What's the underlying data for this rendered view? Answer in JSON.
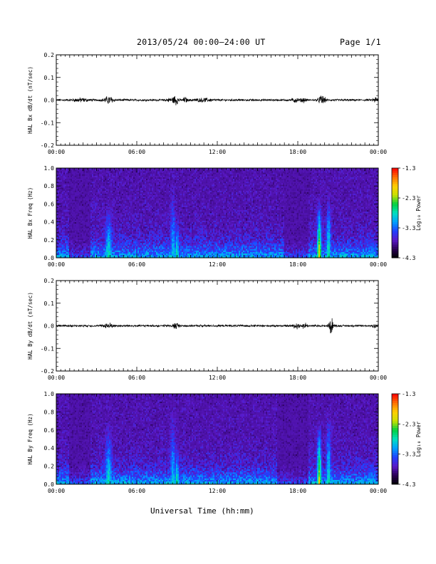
{
  "header": {
    "title": "2013/05/24  00:00–24:00 UT",
    "page": "Page 1/1"
  },
  "footer": {
    "xlabel": "Universal Time (hh:mm)"
  },
  "colorbar": {
    "title": "Log₁₀ Power",
    "ticks": [
      "-1.3",
      "-2.3",
      "-3.3",
      "-4.3"
    ],
    "range": [
      -4.3,
      -1.3
    ],
    "colors": [
      "#000000",
      "#2a0055",
      "#5a18c8",
      "#2040ff",
      "#00a0ff",
      "#00e0c0",
      "#00d040",
      "#c8e000",
      "#ffd000",
      "#ff7000",
      "#ff0000"
    ]
  },
  "chart_data": [
    {
      "type": "line",
      "title": "",
      "xlabel": "",
      "ylabel": "HAL Bx dB/dt (nT/sec)",
      "xlim": [
        "00:00",
        "24:00"
      ],
      "ylim": [
        -0.2,
        0.2
      ],
      "x_ticks": [
        "00:00",
        "06:00",
        "12:00",
        "18:00",
        "00:00"
      ],
      "y_ticks": [
        "0.2",
        "0.1",
        "0.0",
        "-0.1",
        "-0.2"
      ],
      "bursts": [
        {
          "t": 1.8,
          "amp": 0.006,
          "w": 0.8
        },
        {
          "t": 3.9,
          "amp": 0.012,
          "w": 0.5
        },
        {
          "t": 8.6,
          "amp": 0.006,
          "w": 0.6
        },
        {
          "t": 8.9,
          "amp": 0.014,
          "w": 0.25
        },
        {
          "t": 9.6,
          "amp": 0.01,
          "w": 0.2
        },
        {
          "t": 11.0,
          "amp": 0.005,
          "w": 1.0
        },
        {
          "t": 17.8,
          "amp": 0.008,
          "w": 0.3
        },
        {
          "t": 18.4,
          "amp": 0.007,
          "w": 0.3
        },
        {
          "t": 19.8,
          "amp": 0.016,
          "w": 0.35
        },
        {
          "t": 23.8,
          "amp": 0.009,
          "w": 0.3
        }
      ],
      "baseline_noise": 0.0035
    },
    {
      "type": "heatmap",
      "title": "",
      "xlabel": "",
      "ylabel": "HAL Bx Freq (Hz)",
      "xlim": [
        "00:00",
        "24:00"
      ],
      "ylim": [
        0.0,
        1.0
      ],
      "x_ticks": [
        "00:00",
        "06:00",
        "12:00",
        "18:00",
        "00:00"
      ],
      "y_ticks": [
        "1.0",
        "0.8",
        "0.6",
        "0.4",
        "0.2",
        "0.0"
      ],
      "zlim": [
        -4.3,
        -1.3
      ],
      "zlabel": "Log₁₀ Power",
      "band_peaks": [
        {
          "t": 3.9,
          "top_hz": 0.65,
          "level": -2.7,
          "w": 0.6
        },
        {
          "t": 8.7,
          "top_hz": 0.9,
          "level": -2.9,
          "w": 0.45
        },
        {
          "t": 9.0,
          "top_hz": 0.5,
          "level": -2.6,
          "w": 0.35
        },
        {
          "t": 19.6,
          "top_hz": 0.7,
          "level": -1.9,
          "w": 0.35
        },
        {
          "t": 20.3,
          "top_hz": 0.8,
          "level": -2.6,
          "w": 0.4
        },
        {
          "t": 23.5,
          "top_hz": 0.3,
          "level": -3.0,
          "w": 1.0
        }
      ],
      "quiet_intervals": [
        [
          1.0,
          2.6
        ],
        [
          17.0,
          18.8
        ]
      ]
    },
    {
      "type": "line",
      "title": "",
      "xlabel": "",
      "ylabel": "HAL By dB/dt (nT/sec)",
      "xlim": [
        "00:00",
        "24:00"
      ],
      "ylim": [
        -0.2,
        0.2
      ],
      "x_ticks": [
        "00:00",
        "06:00",
        "12:00",
        "18:00",
        "00:00"
      ],
      "y_ticks": [
        "0.2",
        "0.1",
        "0.0",
        "-0.1",
        "-0.2"
      ],
      "bursts": [
        {
          "t": 3.9,
          "amp": 0.009,
          "w": 0.5
        },
        {
          "t": 8.9,
          "amp": 0.012,
          "w": 0.3
        },
        {
          "t": 17.9,
          "amp": 0.01,
          "w": 0.3
        },
        {
          "t": 18.5,
          "amp": 0.01,
          "w": 0.3
        },
        {
          "t": 20.5,
          "amp": 0.03,
          "w": 0.25
        },
        {
          "t": 23.8,
          "amp": 0.009,
          "w": 0.3
        }
      ],
      "baseline_noise": 0.0035
    },
    {
      "type": "heatmap",
      "title": "",
      "xlabel": "Universal Time (hh:mm)",
      "ylabel": "HAL By Freq (Hz)",
      "xlim": [
        "00:00",
        "24:00"
      ],
      "ylim": [
        0.0,
        1.0
      ],
      "x_ticks": [
        "00:00",
        "06:00",
        "12:00",
        "18:00",
        "00:00"
      ],
      "y_ticks": [
        "1.0",
        "0.8",
        "0.6",
        "0.4",
        "0.2",
        "0.0"
      ],
      "zlim": [
        -4.3,
        -1.3
      ],
      "zlabel": "Log₁₀ Power",
      "band_peaks": [
        {
          "t": 3.9,
          "top_hz": 0.75,
          "level": -2.7,
          "w": 0.6
        },
        {
          "t": 8.7,
          "top_hz": 0.9,
          "level": -2.9,
          "w": 0.45
        },
        {
          "t": 9.0,
          "top_hz": 0.5,
          "level": -2.6,
          "w": 0.35
        },
        {
          "t": 19.6,
          "top_hz": 0.75,
          "level": -2.0,
          "w": 0.35
        },
        {
          "t": 20.3,
          "top_hz": 0.9,
          "level": -2.7,
          "w": 0.4
        },
        {
          "t": 23.5,
          "top_hz": 0.3,
          "level": -3.0,
          "w": 1.0
        }
      ],
      "quiet_intervals": [
        [
          1.0,
          2.6
        ],
        [
          16.5,
          18.8
        ]
      ]
    }
  ]
}
